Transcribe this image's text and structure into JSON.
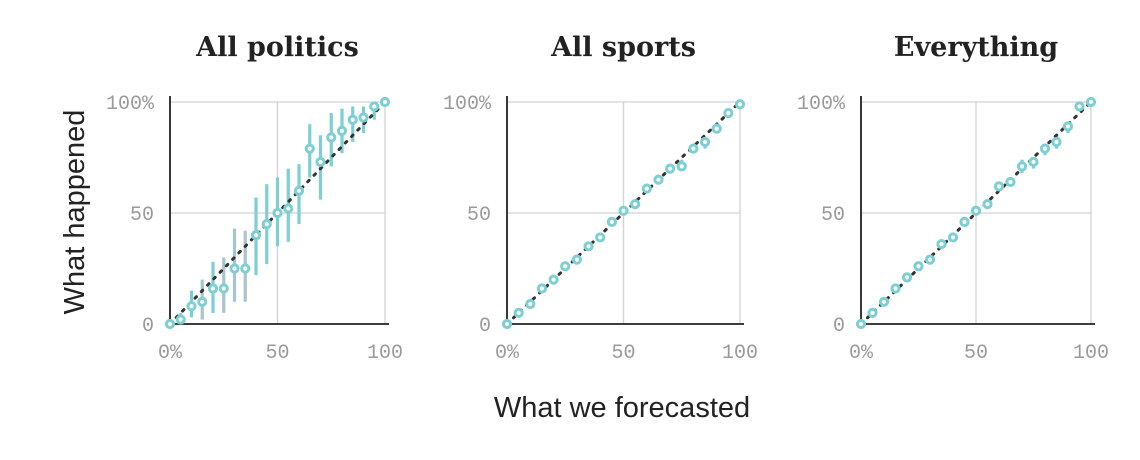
{
  "colors": {
    "accent": "#7ccfd3",
    "accent_muted": "#a9c4cc",
    "diagonal": "#333333"
  },
  "figure": {
    "xlabel": "What we forecasted",
    "ylabel": "What happened"
  },
  "chart_data": [
    {
      "type": "scatter",
      "title": "All politics",
      "xlim": [
        0,
        100
      ],
      "ylim": [
        0,
        100
      ],
      "x_ticks": [
        "0%",
        "50",
        "100"
      ],
      "y_ticks": [
        "0",
        "50",
        "100%"
      ],
      "grid": true,
      "reference_line": "y = x",
      "points": [
        {
          "x": 0,
          "y": 0,
          "lo": 0,
          "hi": 1
        },
        {
          "x": 5,
          "y": 2,
          "lo": 0,
          "hi": 5
        },
        {
          "x": 10,
          "y": 8,
          "lo": 3,
          "hi": 15
        },
        {
          "x": 15,
          "y": 10,
          "lo": 2,
          "hi": 20
        },
        {
          "x": 20,
          "y": 16,
          "lo": 5,
          "hi": 28
        },
        {
          "x": 25,
          "y": 16,
          "lo": 5,
          "hi": 30
        },
        {
          "x": 30,
          "y": 25,
          "lo": 10,
          "hi": 43
        },
        {
          "x": 35,
          "y": 25,
          "lo": 10,
          "hi": 42
        },
        {
          "x": 40,
          "y": 40,
          "lo": 22,
          "hi": 57
        },
        {
          "x": 45,
          "y": 45,
          "lo": 27,
          "hi": 63
        },
        {
          "x": 50,
          "y": 50,
          "lo": 35,
          "hi": 66
        },
        {
          "x": 55,
          "y": 52,
          "lo": 37,
          "hi": 70
        },
        {
          "x": 60,
          "y": 60,
          "lo": 45,
          "hi": 72
        },
        {
          "x": 65,
          "y": 79,
          "lo": 66,
          "hi": 90
        },
        {
          "x": 70,
          "y": 73,
          "lo": 56,
          "hi": 85
        },
        {
          "x": 75,
          "y": 84,
          "lo": 71,
          "hi": 95
        },
        {
          "x": 80,
          "y": 87,
          "lo": 77,
          "hi": 97
        },
        {
          "x": 85,
          "y": 92,
          "lo": 82,
          "hi": 98
        },
        {
          "x": 90,
          "y": 93,
          "lo": 86,
          "hi": 98
        },
        {
          "x": 95,
          "y": 98,
          "lo": 92,
          "hi": 100
        },
        {
          "x": 100,
          "y": 100,
          "lo": 99,
          "hi": 100
        }
      ]
    },
    {
      "type": "scatter",
      "title": "All sports",
      "xlim": [
        0,
        100
      ],
      "ylim": [
        0,
        100
      ],
      "x_ticks": [
        "0%",
        "50",
        "100"
      ],
      "y_ticks": [
        "0",
        "50",
        "100%"
      ],
      "grid": true,
      "reference_line": "y = x",
      "points": [
        {
          "x": 0,
          "y": 0,
          "lo": 0,
          "hi": 0.5
        },
        {
          "x": 5,
          "y": 5,
          "lo": 4,
          "hi": 6
        },
        {
          "x": 10,
          "y": 9,
          "lo": 8,
          "hi": 10
        },
        {
          "x": 15,
          "y": 16,
          "lo": 15,
          "hi": 17
        },
        {
          "x": 20,
          "y": 20,
          "lo": 19,
          "hi": 21
        },
        {
          "x": 25,
          "y": 26,
          "lo": 25,
          "hi": 27
        },
        {
          "x": 30,
          "y": 29,
          "lo": 28,
          "hi": 30
        },
        {
          "x": 35,
          "y": 35,
          "lo": 34,
          "hi": 36
        },
        {
          "x": 40,
          "y": 39,
          "lo": 38,
          "hi": 40
        },
        {
          "x": 45,
          "y": 46,
          "lo": 45,
          "hi": 47
        },
        {
          "x": 50,
          "y": 51,
          "lo": 50,
          "hi": 52
        },
        {
          "x": 55,
          "y": 54,
          "lo": 53,
          "hi": 55
        },
        {
          "x": 60,
          "y": 61,
          "lo": 60,
          "hi": 62
        },
        {
          "x": 65,
          "y": 65,
          "lo": 64,
          "hi": 66
        },
        {
          "x": 70,
          "y": 70,
          "lo": 68,
          "hi": 72
        },
        {
          "x": 75,
          "y": 71,
          "lo": 69,
          "hi": 74
        },
        {
          "x": 80,
          "y": 79,
          "lo": 77,
          "hi": 81
        },
        {
          "x": 85,
          "y": 82,
          "lo": 79,
          "hi": 84
        },
        {
          "x": 90,
          "y": 88,
          "lo": 86,
          "hi": 90
        },
        {
          "x": 95,
          "y": 95,
          "lo": 93,
          "hi": 96
        },
        {
          "x": 100,
          "y": 99,
          "lo": 98,
          "hi": 100
        }
      ]
    },
    {
      "type": "scatter",
      "title": "Everything",
      "xlim": [
        0,
        100
      ],
      "ylim": [
        0,
        100
      ],
      "x_ticks": [
        "0%",
        "50",
        "100"
      ],
      "y_ticks": [
        "0",
        "50",
        "100%"
      ],
      "grid": true,
      "reference_line": "y = x",
      "points": [
        {
          "x": 0,
          "y": 0,
          "lo": 0,
          "hi": 0.5
        },
        {
          "x": 5,
          "y": 5,
          "lo": 4,
          "hi": 6
        },
        {
          "x": 10,
          "y": 10,
          "lo": 9,
          "hi": 11
        },
        {
          "x": 15,
          "y": 16,
          "lo": 15,
          "hi": 17
        },
        {
          "x": 20,
          "y": 21,
          "lo": 20,
          "hi": 22
        },
        {
          "x": 25,
          "y": 26,
          "lo": 25,
          "hi": 27
        },
        {
          "x": 30,
          "y": 29,
          "lo": 28,
          "hi": 30
        },
        {
          "x": 35,
          "y": 36,
          "lo": 35,
          "hi": 37
        },
        {
          "x": 40,
          "y": 39,
          "lo": 38,
          "hi": 40
        },
        {
          "x": 45,
          "y": 46,
          "lo": 45,
          "hi": 47
        },
        {
          "x": 50,
          "y": 51,
          "lo": 50,
          "hi": 52
        },
        {
          "x": 55,
          "y": 54,
          "lo": 53,
          "hi": 55
        },
        {
          "x": 60,
          "y": 62,
          "lo": 61,
          "hi": 63
        },
        {
          "x": 65,
          "y": 64,
          "lo": 62,
          "hi": 66
        },
        {
          "x": 70,
          "y": 71,
          "lo": 68,
          "hi": 74
        },
        {
          "x": 75,
          "y": 73,
          "lo": 70,
          "hi": 75
        },
        {
          "x": 80,
          "y": 79,
          "lo": 76,
          "hi": 81
        },
        {
          "x": 85,
          "y": 82,
          "lo": 79,
          "hi": 85
        },
        {
          "x": 90,
          "y": 89,
          "lo": 86,
          "hi": 91
        },
        {
          "x": 95,
          "y": 98,
          "lo": 97,
          "hi": 99
        },
        {
          "x": 100,
          "y": 100,
          "lo": 99,
          "hi": 100
        }
      ]
    }
  ]
}
